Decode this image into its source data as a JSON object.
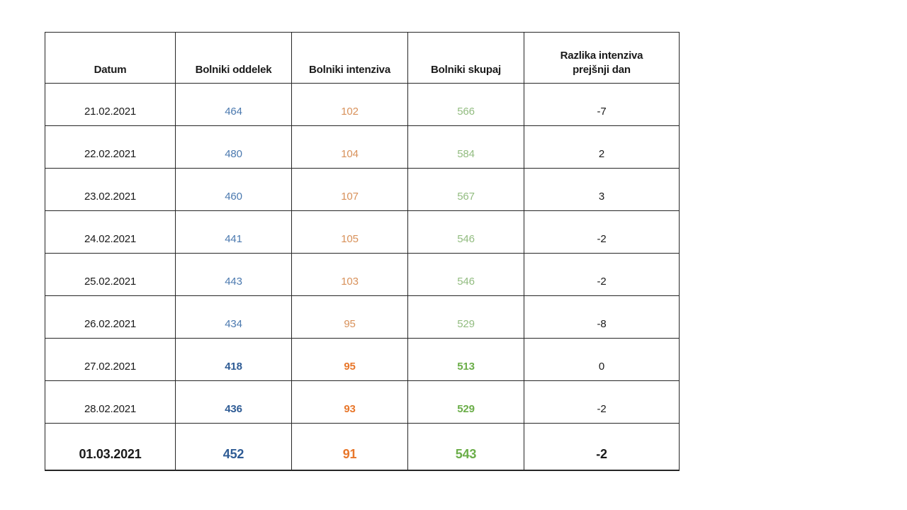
{
  "chart_data": {
    "type": "table",
    "columns": [
      "Datum",
      "Bolniki oddelek",
      "Bolniki intenziva",
      "Bolniki skupaj",
      "Razlika intenziva prejšnji dan"
    ],
    "rows": [
      {
        "datum": "21.02.2021",
        "oddelek": "464",
        "intenziva": "102",
        "skupaj": "566",
        "razlika": "-7",
        "style": "regular"
      },
      {
        "datum": "22.02.2021",
        "oddelek": "480",
        "intenziva": "104",
        "skupaj": "584",
        "razlika": "2",
        "style": "regular"
      },
      {
        "datum": "23.02.2021",
        "oddelek": "460",
        "intenziva": "107",
        "skupaj": "567",
        "razlika": "3",
        "style": "regular"
      },
      {
        "datum": "24.02.2021",
        "oddelek": "441",
        "intenziva": "105",
        "skupaj": "546",
        "razlika": "-2",
        "style": "regular"
      },
      {
        "datum": "25.02.2021",
        "oddelek": "443",
        "intenziva": "103",
        "skupaj": "546",
        "razlika": "-2",
        "style": "regular"
      },
      {
        "datum": "26.02.2021",
        "oddelek": "434",
        "intenziva": "95",
        "skupaj": "529",
        "razlika": "-8",
        "style": "regular"
      },
      {
        "datum": "27.02.2021",
        "oddelek": "418",
        "intenziva": "95",
        "skupaj": "513",
        "razlika": "0",
        "style": "bold"
      },
      {
        "datum": "28.02.2021",
        "oddelek": "436",
        "intenziva": "93",
        "skupaj": "529",
        "razlika": "-2",
        "style": "bold"
      },
      {
        "datum": "01.03.2021",
        "oddelek": "452",
        "intenziva": "91",
        "skupaj": "543",
        "razlika": "-2",
        "style": "strong"
      }
    ]
  },
  "colors": {
    "oddelek_regular": "#4B79AF",
    "oddelek_bold": "#2F5C95",
    "intenziva_regular": "#D8915A",
    "intenziva_bold": "#E8772B",
    "skupaj_regular": "#92BC80",
    "skupaj_bold": "#6BAE49",
    "text": "#1a1a1a",
    "border": "#262626",
    "background": "#ffffff"
  }
}
